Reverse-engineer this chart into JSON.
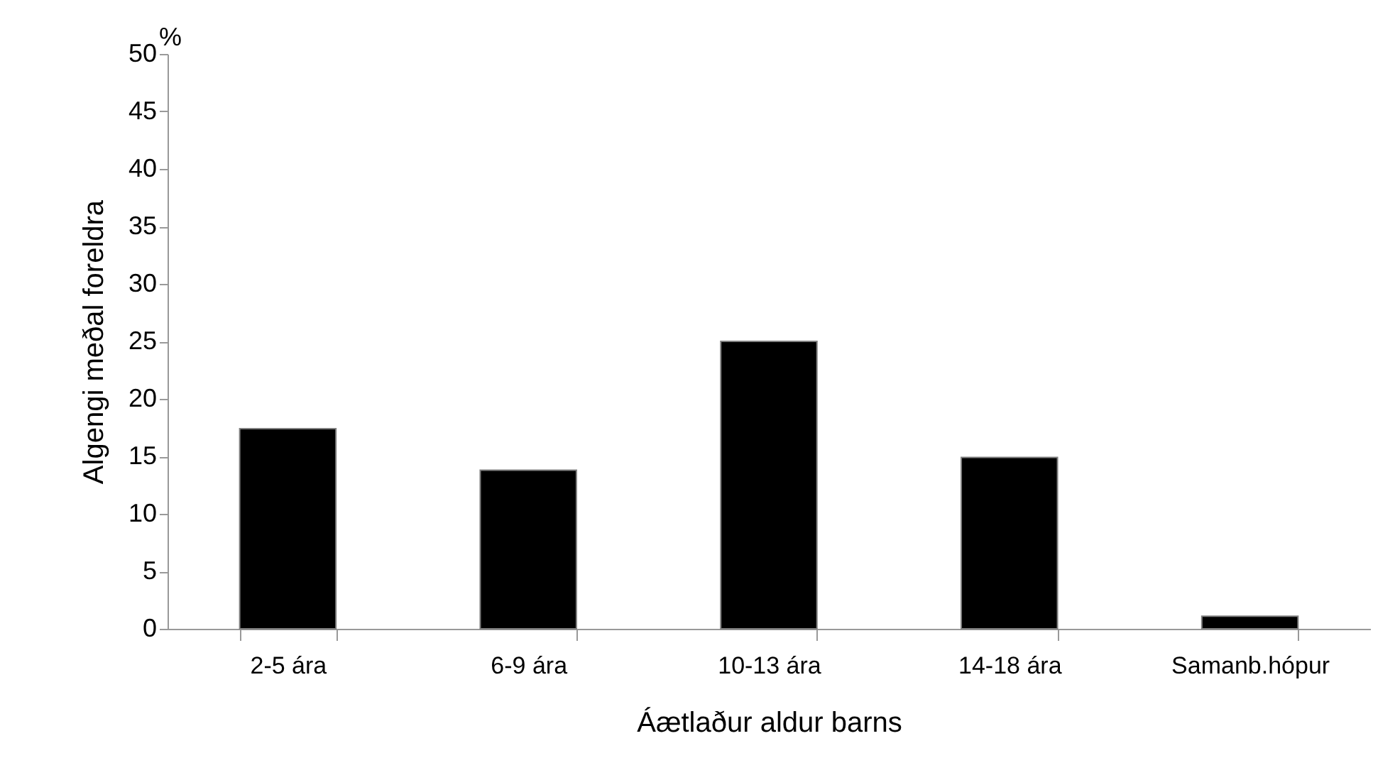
{
  "chart_data": {
    "type": "bar",
    "xlabel": "Áætlaður aldur  barns",
    "ylabel": "Algengi  meðal foreldra",
    "annotations": [
      "%"
    ],
    "categories": [
      "2-5 ára",
      "6-9 ára",
      "10-13 ára",
      "14-18 ára",
      "Samanb.hópur"
    ],
    "values": [
      17.4,
      13.8,
      25,
      14.9,
      1.1
    ],
    "color": "#000000",
    "ylim": [
      0,
      50
    ],
    "yticks": [
      0,
      5,
      10,
      15,
      20,
      25,
      30,
      35,
      40,
      45,
      50
    ],
    "grid": false
  }
}
